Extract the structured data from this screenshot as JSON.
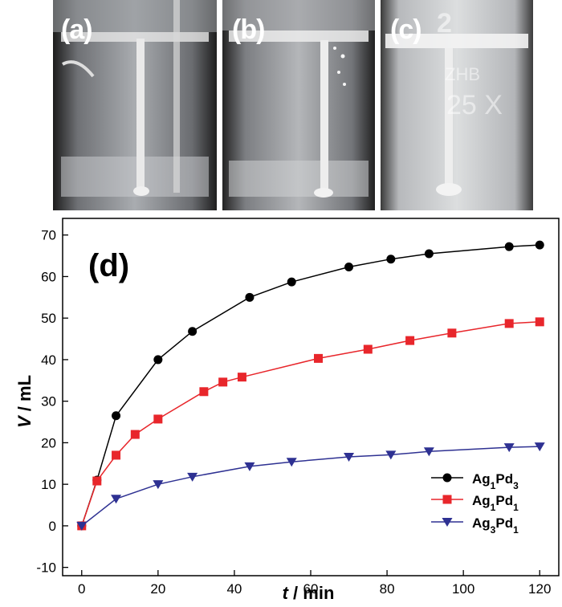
{
  "photos": [
    {
      "label": "(a)"
    },
    {
      "label": "(b)"
    },
    {
      "label": "(c)"
    }
  ],
  "photo_c_marks": {
    "top": "2",
    "mid": "ZHB",
    "bottom": "25 X"
  },
  "chart_data": {
    "type": "line",
    "panel_label": "(d)",
    "xlabel": {
      "var": "t",
      "unit": " / min"
    },
    "ylabel": {
      "var": "V",
      "unit": " / mL"
    },
    "xlim": [
      -5,
      125
    ],
    "ylim": [
      -12,
      74
    ],
    "xticks": [
      0,
      20,
      40,
      60,
      80,
      100,
      120
    ],
    "yticks": [
      -10,
      0,
      10,
      20,
      30,
      40,
      50,
      60,
      70
    ],
    "legend_position": "bottom-right",
    "series": [
      {
        "name": "Ag1Pd3",
        "legend": {
          "a": "Ag",
          "a_sub": "1",
          "b": "Pd",
          "b_sub": "3"
        },
        "color": "#000000",
        "marker": "circle",
        "x": [
          0,
          4,
          9,
          20,
          29,
          44,
          55,
          70,
          81,
          91,
          112,
          120
        ],
        "y": [
          0,
          11,
          26.5,
          40,
          46.8,
          55,
          58.7,
          62.3,
          64.2,
          65.5,
          67.2,
          67.6
        ]
      },
      {
        "name": "Ag1Pd1",
        "legend": {
          "a": "Ag",
          "a_sub": "1",
          "b": "Pd",
          "b_sub": "1"
        },
        "color": "#e8262b",
        "marker": "square",
        "x": [
          0,
          4,
          9,
          14,
          20,
          32,
          37,
          42,
          62,
          75,
          86,
          97,
          112,
          120
        ],
        "y": [
          0,
          10.8,
          17,
          22,
          25.7,
          32.3,
          34.6,
          35.8,
          40.3,
          42.5,
          44.6,
          46.4,
          48.7,
          49.1
        ]
      },
      {
        "name": "Ag3Pd1",
        "legend": {
          "a": "Ag",
          "a_sub": "3",
          "b": "Pd",
          "b_sub": "1"
        },
        "color": "#2e3192",
        "marker": "triangle-down",
        "x": [
          0,
          9,
          20,
          29,
          44,
          55,
          70,
          81,
          91,
          112,
          120
        ],
        "y": [
          0,
          6.5,
          10,
          11.8,
          14.3,
          15.4,
          16.6,
          17.1,
          17.9,
          18.9,
          19.1
        ]
      }
    ]
  }
}
